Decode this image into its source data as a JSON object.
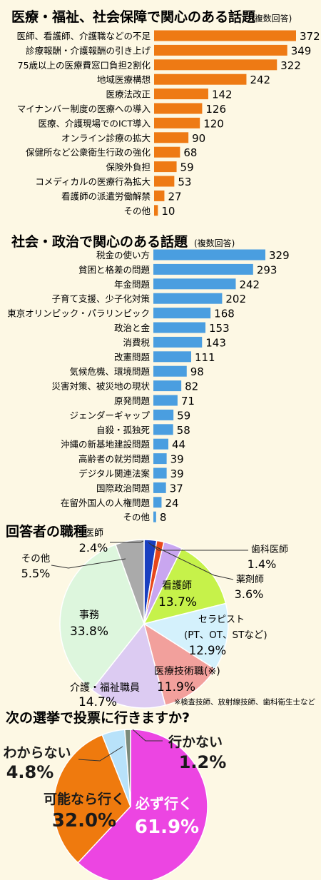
{
  "chart_data": [
    {
      "type": "bar",
      "title": "医療・福祉、社会保障で関心のある話題",
      "subtitle": "(複数回答)",
      "color": "#ee7a14",
      "categories": [
        "医師、看護師、介護職などの不足",
        "診療報酬・介護報酬の引き上げ",
        "75歳以上の医療費窓口負担2割化",
        "地域医療構想",
        "医療法改正",
        "マイナンバー制度の医療への導入",
        "医療、介護現場でのICT導入",
        "オンライン診療の拡大",
        "保健所など公衆衛生行政の強化",
        "保険外負担",
        "コメディカルの医療行為拡大",
        "看護師の派遣労働解禁",
        "その他"
      ],
      "values": [
        372,
        349,
        322,
        242,
        142,
        126,
        120,
        90,
        68,
        59,
        53,
        27,
        10
      ]
    },
    {
      "type": "bar",
      "title": "社会・政治で関心のある話題",
      "subtitle": "(複数回答)",
      "color": "#4a9ee0",
      "categories": [
        "税金の使い方",
        "貧困と格差の問題",
        "年金問題",
        "子育て支援、少子化対策",
        "東京オリンピック・パラリンピック",
        "政治と金",
        "消費税",
        "改憲問題",
        "気候危機、環境問題",
        "災害対策、被災地の現状",
        "原発問題",
        "ジェンダーギャップ",
        "自殺・孤独死",
        "沖縄の新基地建設問題",
        "高齢者の就労問題",
        "デジタル関連法案",
        "国際政治問題",
        "在留外国人の人権問題",
        "その他"
      ],
      "values": [
        329,
        293,
        242,
        202,
        168,
        153,
        143,
        111,
        98,
        82,
        71,
        59,
        58,
        44,
        39,
        39,
        37,
        24,
        8
      ]
    },
    {
      "type": "pie",
      "title": "回答者の職種",
      "note": "※検査技師、放射線技師、歯科衛生士など",
      "slices": [
        {
          "name": "医師",
          "value": 2.4,
          "label": "2.4%",
          "color": "#1a3fc0"
        },
        {
          "name": "歯科医師",
          "value": 1.4,
          "label": "1.4%",
          "color": "#e8471a"
        },
        {
          "name": "薬剤師",
          "value": 3.6,
          "label": "3.6%",
          "color": "#c9a6f0"
        },
        {
          "name": "看護師",
          "value": 13.7,
          "label": "13.7%",
          "color": "#c6f24a"
        },
        {
          "name": "セラピスト",
          "sub": "(PT、OT、STなど)",
          "value": 12.9,
          "label": "12.9%",
          "color": "#d4f1fc"
        },
        {
          "name": "医療技術職(※)",
          "value": 11.9,
          "label": "11.9%",
          "color": "#f2a09c"
        },
        {
          "name": "介護・福祉職員",
          "value": 14.7,
          "label": "14.7%",
          "color": "#dccbf2"
        },
        {
          "name": "事務",
          "value": 33.8,
          "label": "33.8%",
          "color": "#ddf6dd"
        },
        {
          "name": "その他",
          "value": 5.5,
          "label": "5.5%",
          "color": "#aaaaaa"
        }
      ]
    },
    {
      "type": "pie",
      "title": "次の選挙で投票に行きますか?",
      "slices": [
        {
          "name": "必ず行く",
          "value": 61.9,
          "label": "61.9%",
          "color": "#ec45e2"
        },
        {
          "name": "可能なら行く",
          "value": 32.0,
          "label": "32.0%",
          "color": "#ef7a0e"
        },
        {
          "name": "わからない",
          "value": 4.8,
          "label": "4.8%",
          "color": "#b8e2fa"
        },
        {
          "name": "行かない",
          "value": 1.2,
          "label": "1.2%",
          "color": "#7c8b7c"
        }
      ]
    }
  ]
}
